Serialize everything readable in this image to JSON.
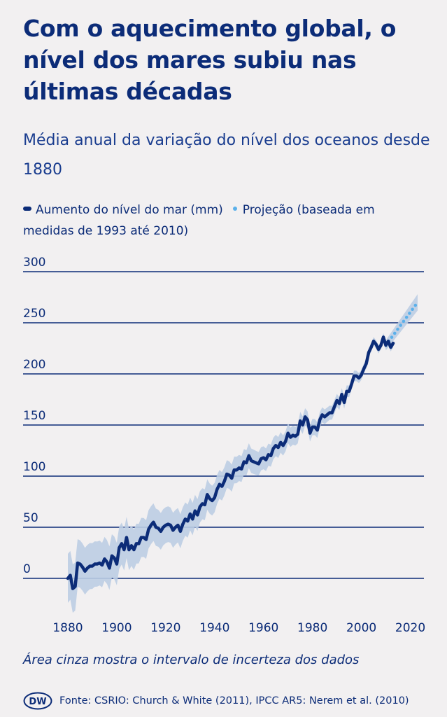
{
  "title": "Com o aquecimento global, o nível dos mares subiu nas últimas décadas",
  "subtitle": "Média anual da variação do nível dos oceanos desde 1880",
  "legend": {
    "series_label": "Aumento do nível do mar (mm)",
    "projection_label": "Projeção (baseada em medidas de 1993 até 2010)"
  },
  "note": "Área cinza mostra o intervalo de incerteza dos dados",
  "footer": {
    "logo_text": "DW",
    "source": "Fonte: CSRIO: Church & White (2011), IPCC AR5: Nerem et al. (2010)"
  },
  "colors": {
    "line": "#0c2c78",
    "band": "#bccde3",
    "projection": "#5bb0ea",
    "grid": "#0c2c78"
  },
  "chart_data": {
    "type": "line",
    "title": "Média anual da variação do nível dos oceanos desde 1880",
    "xlabel": "",
    "ylabel": "",
    "xlim": [
      1880,
      2023
    ],
    "ylim": [
      0,
      300
    ],
    "xticks": [
      1880,
      1900,
      1920,
      1940,
      1960,
      1980,
      2000,
      2020
    ],
    "yticks": [
      0,
      50,
      100,
      150,
      200,
      250,
      300
    ],
    "grid": "horizontal",
    "legend_position": "top",
    "series": [
      {
        "name": "Aumento do nível do mar (mm)",
        "x": [
          1880,
          1881,
          1882,
          1883,
          1884,
          1885,
          1886,
          1887,
          1888,
          1889,
          1890,
          1891,
          1892,
          1893,
          1894,
          1895,
          1896,
          1897,
          1898,
          1899,
          1900,
          1901,
          1902,
          1903,
          1904,
          1905,
          1906,
          1907,
          1908,
          1909,
          1910,
          1911,
          1912,
          1913,
          1914,
          1915,
          1916,
          1917,
          1918,
          1919,
          1920,
          1921,
          1922,
          1923,
          1924,
          1925,
          1926,
          1927,
          1928,
          1929,
          1930,
          1931,
          1932,
          1933,
          1934,
          1935,
          1936,
          1937,
          1938,
          1939,
          1940,
          1941,
          1942,
          1943,
          1944,
          1945,
          1946,
          1947,
          1948,
          1949,
          1950,
          1951,
          1952,
          1953,
          1954,
          1955,
          1956,
          1957,
          1958,
          1959,
          1960,
          1961,
          1962,
          1963,
          1964,
          1965,
          1966,
          1967,
          1968,
          1969,
          1970,
          1971,
          1972,
          1973,
          1974,
          1975,
          1976,
          1977,
          1978,
          1979,
          1980,
          1981,
          1982,
          1983,
          1984,
          1985,
          1986,
          1987,
          1988,
          1989,
          1990,
          1991,
          1992,
          1993,
          1994,
          1995,
          1996,
          1997,
          1998,
          1999,
          2000,
          2001,
          2002,
          2003,
          2004,
          2005,
          2006,
          2007,
          2008,
          2009,
          2010,
          2011,
          2012,
          2013
        ],
        "values": [
          0,
          3,
          -10,
          -8,
          15,
          14,
          11,
          7,
          10,
          12,
          12,
          14,
          14,
          15,
          13,
          19,
          16,
          10,
          22,
          20,
          14,
          30,
          34,
          28,
          40,
          28,
          32,
          28,
          34,
          34,
          40,
          40,
          38,
          48,
          52,
          55,
          50,
          49,
          46,
          50,
          52,
          53,
          52,
          47,
          50,
          52,
          46,
          53,
          58,
          56,
          63,
          58,
          66,
          62,
          70,
          73,
          72,
          82,
          78,
          76,
          79,
          87,
          92,
          90,
          95,
          102,
          101,
          98,
          106,
          106,
          108,
          107,
          114,
          113,
          120,
          115,
          114,
          113,
          112,
          117,
          118,
          116,
          121,
          120,
          127,
          130,
          128,
          133,
          130,
          134,
          142,
          138,
          140,
          139,
          141,
          154,
          150,
          158,
          155,
          142,
          148,
          148,
          145,
          155,
          160,
          158,
          160,
          162,
          162,
          168,
          174,
          171,
          180,
          172,
          183,
          183,
          190,
          198,
          198,
          196,
          199,
          205,
          210,
          221,
          226,
          232,
          229,
          224,
          228,
          236,
          228,
          232,
          226,
          230
        ]
      },
      {
        "name": "Projeção (baseada em medidas de 1993 até 2010)",
        "x": [
          2010,
          2023
        ],
        "values": [
          228,
          270
        ]
      }
    ]
  }
}
